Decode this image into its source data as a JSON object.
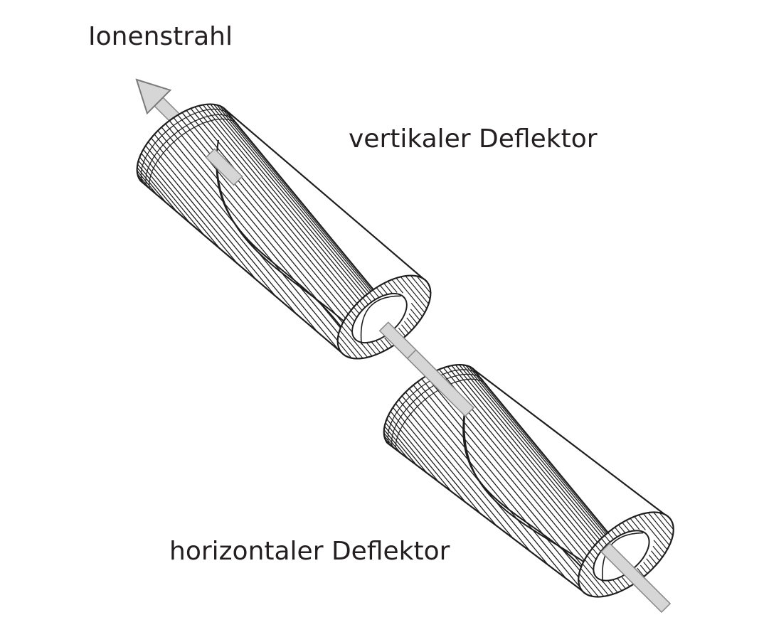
{
  "labels": {
    "ion_beam": "Ionenstrahl",
    "vertical_deflector": "vertikaler Deflektor",
    "horizontal_deflector": "horizontaler Deflektor"
  },
  "colors": {
    "line": "#1e1e1e",
    "beam_fill": "#d6d6d6",
    "beam_edge": "#8a8a8a",
    "text": "#231f20"
  }
}
